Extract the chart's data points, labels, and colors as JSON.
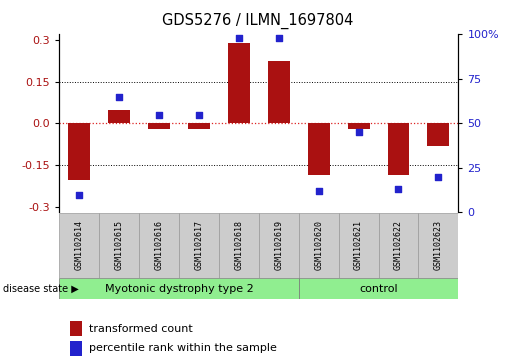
{
  "title": "GDS5276 / ILMN_1697804",
  "samples": [
    "GSM1102614",
    "GSM1102615",
    "GSM1102616",
    "GSM1102617",
    "GSM1102618",
    "GSM1102619",
    "GSM1102620",
    "GSM1102621",
    "GSM1102622",
    "GSM1102623"
  ],
  "red_values": [
    -0.205,
    0.05,
    -0.02,
    -0.02,
    0.29,
    0.225,
    -0.185,
    -0.02,
    -0.185,
    -0.08
  ],
  "blue_values": [
    10,
    65,
    55,
    55,
    98,
    98,
    12,
    45,
    13,
    20
  ],
  "ylim_left": [
    -0.32,
    0.32
  ],
  "ylim_right": [
    -0.32,
    0.32
  ],
  "yticks_left": [
    -0.3,
    -0.15,
    0.0,
    0.15,
    0.3
  ],
  "yticks_right_vals": [
    0,
    25,
    50,
    75,
    100
  ],
  "yticks_right_mapped": [
    -0.32,
    -0.16,
    0.0,
    0.16,
    0.32
  ],
  "groups": [
    {
      "label": "Myotonic dystrophy type 2",
      "start": 0,
      "end": 5,
      "color": "#90EE90"
    },
    {
      "label": "control",
      "start": 6,
      "end": 9,
      "color": "#90EE90"
    }
  ],
  "bar_color": "#AA1111",
  "dot_color": "#2222CC",
  "bg_color": "#FFFFFF",
  "sample_bg": "#CCCCCC",
  "grid_color": "#000000",
  "hline_red_color": "#DD2222",
  "disease_label": "disease state",
  "legend_red_label": "transformed count",
  "legend_blue_label": "percentile rank within the sample",
  "right_tick_labels": [
    "0",
    "25",
    "50",
    "75",
    "100%"
  ]
}
